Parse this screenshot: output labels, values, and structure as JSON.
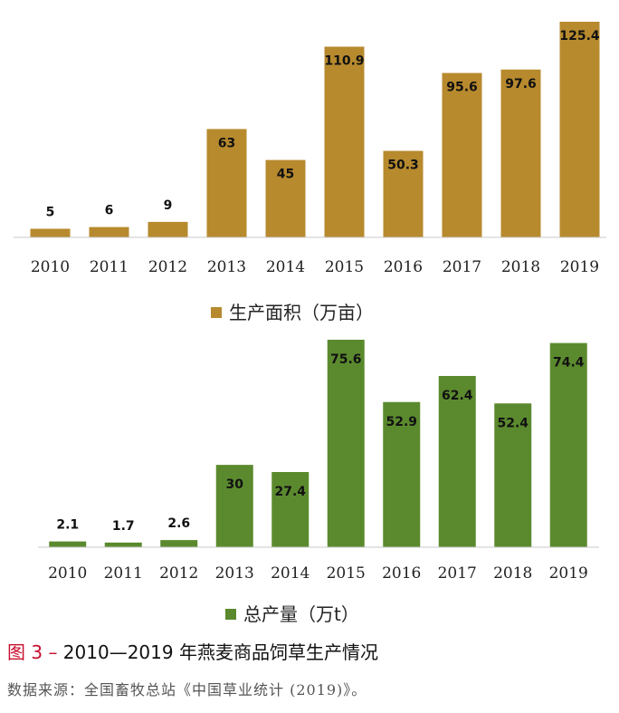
{
  "chart_data": [
    {
      "type": "bar",
      "categories": [
        "2010",
        "2011",
        "2012",
        "2013",
        "2014",
        "2015",
        "2016",
        "2017",
        "2018",
        "2019"
      ],
      "values": [
        5,
        6,
        9,
        63,
        45,
        110.9,
        50.3,
        95.6,
        97.6,
        125.4
      ],
      "value_labels": [
        "5",
        "6",
        "9",
        "63",
        "45",
        "110.9",
        "50.3",
        "95.6",
        "97.6",
        "125.4"
      ],
      "legend": "生产面积（万亩）",
      "color": "#b78a2e",
      "ylim": [
        0,
        125.4
      ]
    },
    {
      "type": "bar",
      "categories": [
        "2010",
        "2011",
        "2012",
        "2013",
        "2014",
        "2015",
        "2016",
        "2017",
        "2018",
        "2019"
      ],
      "values": [
        2.1,
        1.7,
        2.6,
        30,
        27.4,
        75.6,
        52.9,
        62.4,
        52.4,
        74.4
      ],
      "value_labels": [
        "2.1",
        "1.7",
        "2.6",
        "30",
        "27.4",
        "75.6",
        "52.9",
        "62.4",
        "52.4",
        "74.4"
      ],
      "legend": "总产量（万t）",
      "color": "#5b8a2e",
      "ylim": [
        0,
        75.6
      ]
    }
  ],
  "caption": {
    "figure_number": "图 3 –",
    "title": " 2010—2019 年燕麦商品饲草生产情况"
  },
  "source": "数据来源：全国畜牧总站《中国草业统计 (2019)》。"
}
